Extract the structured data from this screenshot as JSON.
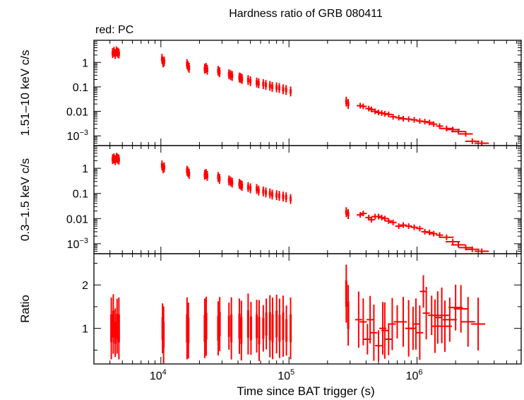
{
  "chart_data": {
    "type": "scatter",
    "title": "Hardness ratio of GRB 080411",
    "legend_note": "red: PC",
    "series_color": "#ff0000",
    "xlabel": "Time since BAT trigger (s)",
    "x_scale": "log",
    "xlim": [
      3000,
      6500000
    ],
    "x_ticks": [
      {
        "value": 10000,
        "base": "10",
        "exp": "4"
      },
      {
        "value": 100000,
        "base": "10",
        "exp": "5"
      },
      {
        "value": 1000000,
        "base": "10",
        "exp": "6"
      }
    ],
    "panels": [
      {
        "name": "hard",
        "ylabel": "1.51–10 keV c/s",
        "y_scale": "log",
        "ylim": [
          0.0004,
          8
        ],
        "y_ticks": [
          {
            "value": 1,
            "label": "1"
          },
          {
            "value": 0.1,
            "label": "0.1"
          },
          {
            "value": 0.01,
            "label": "0.01"
          },
          {
            "value": 0.001,
            "base": "10",
            "exp": "−3"
          }
        ],
        "points": [
          [
            4200,
            2.4
          ],
          [
            4300,
            2.7
          ],
          [
            4400,
            2.2
          ],
          [
            4500,
            2.8
          ],
          [
            4600,
            2.5
          ],
          [
            4700,
            2.3
          ],
          [
            10200,
            1.4
          ],
          [
            10400,
            1.0
          ],
          [
            10600,
            1.1
          ],
          [
            16000,
            0.85
          ],
          [
            16300,
            0.7
          ],
          [
            16600,
            0.6
          ],
          [
            22000,
            0.55
          ],
          [
            22500,
            0.6
          ],
          [
            23000,
            0.5
          ],
          [
            28000,
            0.45
          ],
          [
            28700,
            0.4
          ],
          [
            34000,
            0.33
          ],
          [
            35000,
            0.3
          ],
          [
            36000,
            0.28
          ],
          [
            41000,
            0.24
          ],
          [
            42000,
            0.23
          ],
          [
            43000,
            0.21
          ],
          [
            48000,
            0.19
          ],
          [
            50000,
            0.17
          ],
          [
            56000,
            0.15
          ],
          [
            58000,
            0.14
          ],
          [
            63000,
            0.13
          ],
          [
            66000,
            0.12
          ],
          [
            71000,
            0.11
          ],
          [
            74000,
            0.1
          ],
          [
            80000,
            0.095
          ],
          [
            84000,
            0.09
          ],
          [
            90000,
            0.08
          ],
          [
            95000,
            0.075
          ],
          [
            103000,
            0.065
          ],
          [
            280000,
            0.025
          ],
          [
            290000,
            0.02
          ],
          [
            360000,
            0.017
          ],
          [
            380000,
            0.016
          ],
          [
            420000,
            0.013
          ],
          [
            440000,
            0.012
          ],
          [
            470000,
            0.01
          ],
          [
            500000,
            0.009
          ],
          [
            530000,
            0.0085
          ],
          [
            560000,
            0.008
          ],
          [
            600000,
            0.0075
          ],
          [
            650000,
            0.006
          ],
          [
            720000,
            0.0055
          ],
          [
            780000,
            0.005
          ],
          [
            860000,
            0.0048
          ],
          [
            950000,
            0.0045
          ],
          [
            1050000,
            0.004
          ],
          [
            1150000,
            0.0038
          ],
          [
            1250000,
            0.0035
          ],
          [
            1350000,
            0.003
          ],
          [
            1500000,
            0.0025
          ],
          [
            1700000,
            0.002
          ],
          [
            1900000,
            0.0018
          ],
          [
            2100000,
            0.0015
          ],
          [
            2400000,
            0.0012
          ],
          [
            2700000,
            0.0006
          ],
          [
            3200000,
            0.0005
          ]
        ]
      },
      {
        "name": "soft",
        "ylabel": "0.3–1.5 keV c/s",
        "y_scale": "log",
        "ylim": [
          0.0004,
          8
        ],
        "y_ticks": [
          {
            "value": 1,
            "label": "1"
          },
          {
            "value": 0.1,
            "label": "0.1"
          },
          {
            "value": 0.01,
            "label": "0.01"
          },
          {
            "value": 0.001,
            "base": "10",
            "exp": "−3"
          }
        ],
        "points": [
          [
            4200,
            2.3
          ],
          [
            4300,
            2.5
          ],
          [
            4400,
            2.1
          ],
          [
            4500,
            2.6
          ],
          [
            4600,
            2.4
          ],
          [
            4700,
            2.2
          ],
          [
            10200,
            1.3
          ],
          [
            10400,
            1.0
          ],
          [
            10600,
            1.1
          ],
          [
            16000,
            0.8
          ],
          [
            16300,
            0.7
          ],
          [
            16600,
            0.6
          ],
          [
            22000,
            0.55
          ],
          [
            22500,
            0.6
          ],
          [
            23000,
            0.5
          ],
          [
            28000,
            0.45
          ],
          [
            28700,
            0.38
          ],
          [
            34000,
            0.33
          ],
          [
            35000,
            0.3
          ],
          [
            36000,
            0.27
          ],
          [
            41000,
            0.24
          ],
          [
            42000,
            0.22
          ],
          [
            43000,
            0.2
          ],
          [
            48000,
            0.18
          ],
          [
            50000,
            0.16
          ],
          [
            56000,
            0.15
          ],
          [
            58000,
            0.13
          ],
          [
            63000,
            0.12
          ],
          [
            66000,
            0.11
          ],
          [
            71000,
            0.1
          ],
          [
            74000,
            0.09
          ],
          [
            80000,
            0.085
          ],
          [
            84000,
            0.08
          ],
          [
            90000,
            0.075
          ],
          [
            95000,
            0.07
          ],
          [
            103000,
            0.06
          ],
          [
            280000,
            0.018
          ],
          [
            290000,
            0.015
          ],
          [
            360000,
            0.014
          ],
          [
            380000,
            0.016
          ],
          [
            420000,
            0.011
          ],
          [
            440000,
            0.009
          ],
          [
            470000,
            0.012
          ],
          [
            500000,
            0.012
          ],
          [
            530000,
            0.011
          ],
          [
            560000,
            0.01
          ],
          [
            600000,
            0.008
          ],
          [
            650000,
            0.007
          ],
          [
            720000,
            0.005
          ],
          [
            780000,
            0.0055
          ],
          [
            860000,
            0.005
          ],
          [
            950000,
            0.0045
          ],
          [
            1050000,
            0.004
          ],
          [
            1150000,
            0.003
          ],
          [
            1250000,
            0.0028
          ],
          [
            1350000,
            0.0025
          ],
          [
            1500000,
            0.0022
          ],
          [
            1700000,
            0.0018
          ],
          [
            1900000,
            0.0012
          ],
          [
            2100000,
            0.0009
          ],
          [
            2400000,
            0.0007
          ],
          [
            2700000,
            0.0006
          ],
          [
            3200000,
            0.0005
          ]
        ]
      },
      {
        "name": "ratio",
        "ylabel": "Ratio",
        "y_scale": "linear",
        "ylim": [
          0.18,
          2.72
        ],
        "y_ticks": [
          {
            "value": 1,
            "label": "1"
          },
          {
            "value": 2,
            "label": "2"
          }
        ],
        "points": [
          [
            4100,
            1.0
          ],
          [
            4250,
            1.1
          ],
          [
            4400,
            0.9
          ],
          [
            4550,
            1.05
          ],
          [
            4700,
            1.0
          ],
          [
            10300,
            1.0
          ],
          [
            10500,
            0.85
          ],
          [
            16000,
            1.0
          ],
          [
            16400,
            0.95
          ],
          [
            22000,
            1.0
          ],
          [
            22600,
            1.05
          ],
          [
            28000,
            1.0
          ],
          [
            28800,
            1.1
          ],
          [
            34000,
            1.05
          ],
          [
            35500,
            1.0
          ],
          [
            41000,
            1.05
          ],
          [
            42500,
            0.95
          ],
          [
            48000,
            1.1
          ],
          [
            50500,
            1.0
          ],
          [
            56000,
            1.05
          ],
          [
            58500,
            0.95
          ],
          [
            63000,
            1.0
          ],
          [
            66500,
            1.1
          ],
          [
            71000,
            1.05
          ],
          [
            74500,
            1.0
          ],
          [
            80000,
            1.1
          ],
          [
            84500,
            1.0
          ],
          [
            90000,
            1.05
          ],
          [
            95500,
            0.95
          ],
          [
            103000,
            1.0
          ],
          [
            280000,
            1.8
          ],
          [
            290000,
            1.3
          ],
          [
            350000,
            1.2
          ],
          [
            380000,
            1.15
          ],
          [
            410000,
            0.75
          ],
          [
            430000,
            1.2
          ],
          [
            460000,
            0.9
          ],
          [
            500000,
            0.6
          ],
          [
            540000,
            1.0
          ],
          [
            560000,
            0.95
          ],
          [
            600000,
            0.75
          ],
          [
            640000,
            1.1
          ],
          [
            700000,
            1.15
          ],
          [
            780000,
            1.15
          ],
          [
            860000,
            1.0
          ],
          [
            930000,
            1.0
          ],
          [
            980000,
            1.1
          ],
          [
            1050000,
            0.9
          ],
          [
            1120000,
            1.85
          ],
          [
            1180000,
            1.35
          ],
          [
            1300000,
            1.3
          ],
          [
            1380000,
            1.05
          ],
          [
            1450000,
            1.25
          ],
          [
            1560000,
            1.3
          ],
          [
            1650000,
            1.05
          ],
          [
            1800000,
            1.2
          ],
          [
            2000000,
            1.48
          ],
          [
            2200000,
            1.45
          ],
          [
            2500000,
            1.15
          ],
          [
            3000000,
            1.1
          ]
        ]
      }
    ]
  }
}
